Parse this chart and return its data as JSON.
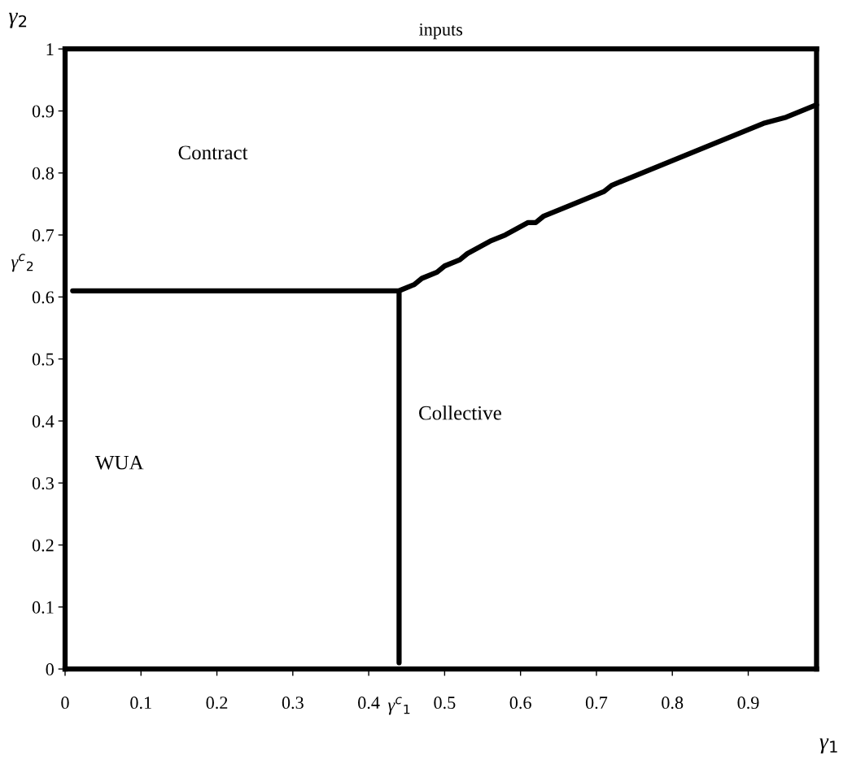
{
  "chart_data": {
    "type": "line",
    "title": "inputs",
    "xlabel": "γ$_{1}$",
    "ylabel": "γ$_{2}$",
    "xlim": [
      0,
      0.99
    ],
    "xticks": [
      0,
      0.1,
      0.2,
      0.3,
      0.4,
      0.5,
      0.6,
      0.7,
      0.8,
      0.9
    ],
    "ylim": [
      0,
      1
    ],
    "yticks": [
      0,
      0.1,
      0.2,
      0.3,
      0.4,
      0.5,
      0.6,
      0.7,
      0.8,
      0.9,
      1
    ],
    "grid": false,
    "marker": "none",
    "line_style": "solid",
    "series": [
      {
        "color": "#000000",
        "x": [
          0.44,
          0.44,
          null,
          0.01,
          0.44,
          0.46,
          0.47,
          0.49,
          0.5,
          0.52,
          0.53,
          0.56,
          0.58,
          0.61,
          0.62,
          0.63,
          0.71,
          0.72,
          0.92,
          0.95,
          0.99
        ],
        "values": [
          0.01,
          0.61,
          null,
          0.61,
          0.61,
          0.62,
          0.63,
          0.64,
          0.65,
          0.66,
          0.67,
          0.69,
          0.7,
          0.72,
          0.72,
          0.73,
          0.77,
          0.78,
          0.88,
          0.89,
          0.91
        ]
      }
    ],
    "annotations": [
      "Contract",
      "WUA",
      "Collective",
      "γ$^{c}$$_{2}$",
      "γ$^{c}$$_{1}$"
    ]
  }
}
